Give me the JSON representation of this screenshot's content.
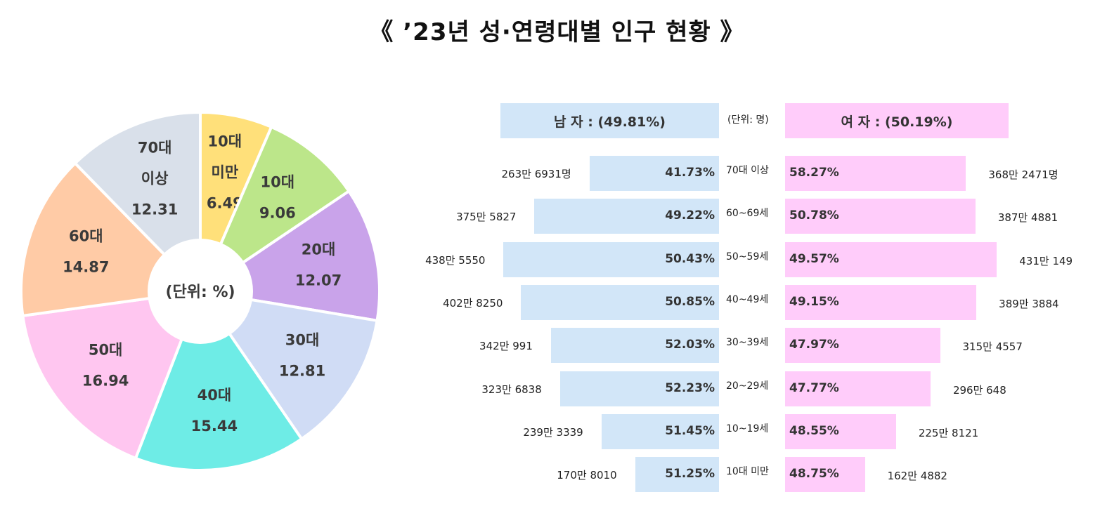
{
  "title": "《 ’23년 성·연령대별 인구 현황 》",
  "chart_data": [
    {
      "type": "pie",
      "center_label": "(단위: %)",
      "slices": [
        {
          "label": [
            "10대",
            "미만"
          ],
          "value": 6.49,
          "display": "6.49",
          "color": "#FFE07A"
        },
        {
          "label": [
            "10대"
          ],
          "value": 9.06,
          "display": "9.06",
          "color": "#BCE68A"
        },
        {
          "label": [
            "20대"
          ],
          "value": 12.07,
          "display": "12.07",
          "color": "#C9A3EA"
        },
        {
          "label": [
            "30대"
          ],
          "value": 12.81,
          "display": "12.81",
          "color": "#D0DCF5"
        },
        {
          "label": [
            "40대"
          ],
          "value": 15.44,
          "display": "15.44",
          "color": "#6EECE6"
        },
        {
          "label": [
            "50대"
          ],
          "value": 16.94,
          "display": "16.94",
          "color": "#FFC6F0"
        },
        {
          "label": [
            "60대"
          ],
          "value": 14.87,
          "display": "14.87",
          "color": "#FFCBA6"
        },
        {
          "label": [
            "70대",
            "이상"
          ],
          "value": 12.31,
          "display": "12.31",
          "color": "#D9E0EA"
        }
      ]
    },
    {
      "type": "bar",
      "unit_label": "(단위: 명)",
      "male_header": "남 자 : (49.81%)",
      "female_header": "여 자 : (50.19%)",
      "male_color": "#D2E6F8",
      "female_color": "#FFCCFA",
      "rows": [
        {
          "age": "70대 이상",
          "male_count": "263만 6931명",
          "male_count_value": 2636931,
          "male_pct": "41.73%",
          "female_pct": "58.27%",
          "female_count": "368만 2471명",
          "female_count_value": 3682471
        },
        {
          "age": "60~69세",
          "male_count": "375만 5827",
          "male_count_value": 3755827,
          "male_pct": "49.22%",
          "female_pct": "50.78%",
          "female_count": "387만 4881",
          "female_count_value": 3874881
        },
        {
          "age": "50~59세",
          "male_count": "438만 5550",
          "male_count_value": 4385550,
          "male_pct": "50.43%",
          "female_pct": "49.57%",
          "female_count": "431만 149",
          "female_count_value": 4310149
        },
        {
          "age": "40~49세",
          "male_count": "402만 8250",
          "male_count_value": 4028250,
          "male_pct": "50.85%",
          "female_pct": "49.15%",
          "female_count": "389만 3884",
          "female_count_value": 3893884
        },
        {
          "age": "30~39세",
          "male_count": "342만 991",
          "male_count_value": 3420991,
          "male_pct": "52.03%",
          "female_pct": "47.97%",
          "female_count": "315만 4557",
          "female_count_value": 3154557
        },
        {
          "age": "20~29세",
          "male_count": "323만 6838",
          "male_count_value": 3236838,
          "male_pct": "52.23%",
          "female_pct": "47.77%",
          "female_count": "296만 648",
          "female_count_value": 2960648
        },
        {
          "age": "10~19세",
          "male_count": "239만 3339",
          "male_count_value": 2393339,
          "male_pct": "51.45%",
          "female_pct": "48.55%",
          "female_count": "225만 8121",
          "female_count_value": 2258121
        },
        {
          "age": "10대 미만",
          "male_count": "170만 8010",
          "male_count_value": 1708010,
          "male_pct": "51.25%",
          "female_pct": "48.75%",
          "female_count": "162만 4882",
          "female_count_value": 1624882
        }
      ]
    }
  ]
}
